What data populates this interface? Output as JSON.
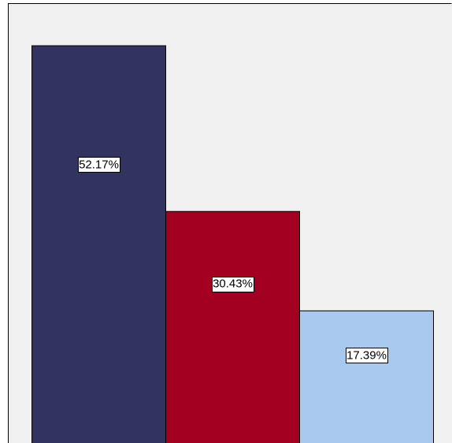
{
  "chart_data": {
    "type": "bar",
    "categories": [
      "",
      "",
      ""
    ],
    "values": [
      52.17,
      30.43,
      17.39
    ],
    "value_unit": "%",
    "data_labels": [
      "52.17%",
      "30.43%",
      "17.39%"
    ],
    "colors": [
      "#33335f",
      "#a30021",
      "#a8c8ee"
    ],
    "title": "",
    "xlabel": "",
    "ylabel": "",
    "ylim": [
      0,
      57.6
    ],
    "grid": false,
    "legend": "none"
  },
  "style": {
    "plot_background": "#f0f0f0",
    "frame_color": "#000000",
    "bar_edge_color": "#000000",
    "label_box_fill": "#ffffff",
    "label_box_stroke": "#000000"
  }
}
